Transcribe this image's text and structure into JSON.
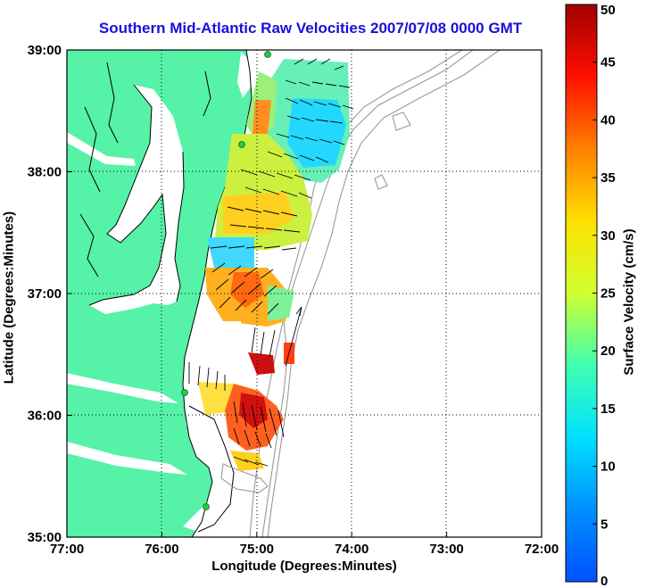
{
  "title": "Southern Mid-Atlantic Raw Velocities 2007/07/08 0000 GMT",
  "chart_data": {
    "type": "map",
    "xlabel": "Longitude (Degrees:Minutes)",
    "ylabel": "Latitude (Degrees:Minutes)",
    "x_tick_labels": [
      "77:00",
      "76:00",
      "75:00",
      "74:00",
      "73:00",
      "72:00"
    ],
    "y_tick_labels": [
      "39:00",
      "38:00",
      "37:00",
      "36:00",
      "35:00"
    ],
    "xlim_deg_west": [
      77,
      72
    ],
    "ylim_deg_north": [
      35,
      39
    ],
    "grid": "dotted",
    "colorbar": {
      "label": "Surface Velocity (cm/s)",
      "ticks": [
        "50",
        "45",
        "40",
        "35",
        "30",
        "25",
        "20",
        "15",
        "10",
        "5",
        "0"
      ],
      "range": [
        0,
        50
      ],
      "colormap": "jet"
    },
    "colors": {
      "land": "#55f2a8",
      "title": "#1a10d8",
      "coast_markers": "#22cc44",
      "bathymetry": "#999999"
    }
  }
}
